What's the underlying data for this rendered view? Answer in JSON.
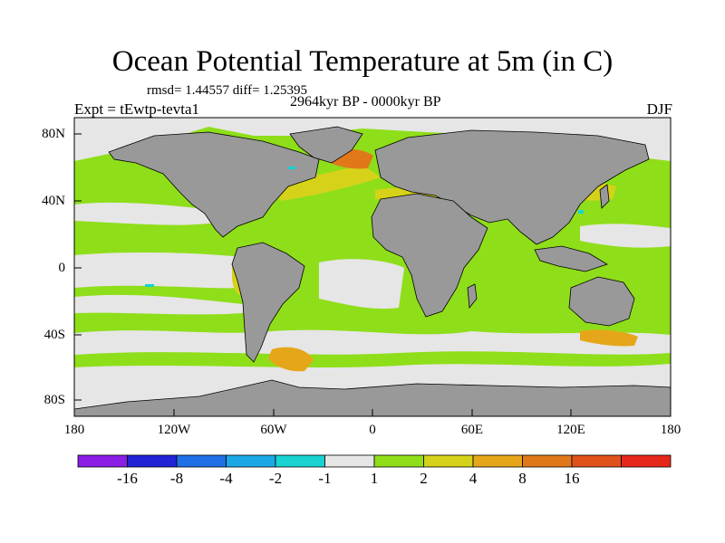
{
  "title": "Ocean Potential Temperature at 5m (in C)",
  "stats": "rmsd= 1.44557  diff= 1.25395",
  "expt": "Expt = tEwtp-tevta1",
  "period": "2964kyr BP - 0000kyr BP",
  "season": "DJF",
  "map": {
    "lat_labels": [
      "80N",
      "40N",
      "0",
      "40S",
      "80S"
    ],
    "lon_labels": [
      "180",
      "120W",
      "60W",
      "0",
      "60E",
      "120E",
      "180"
    ],
    "land_color": "#999999",
    "ocean_zero_color": "#e6e6e6"
  },
  "colorbar": {
    "colors": [
      "#8a1ee6",
      "#2222d6",
      "#1f6fe6",
      "#1aa8e6",
      "#19d2d2",
      "#e6e6e6",
      "#8fde1a",
      "#d6d21a",
      "#e6a61a",
      "#e0781a",
      "#e0521a",
      "#e6281a"
    ],
    "labels": [
      "-16",
      "-8",
      "-4",
      "-2",
      "-1",
      "1",
      "2",
      "4",
      "8",
      "16"
    ]
  }
}
